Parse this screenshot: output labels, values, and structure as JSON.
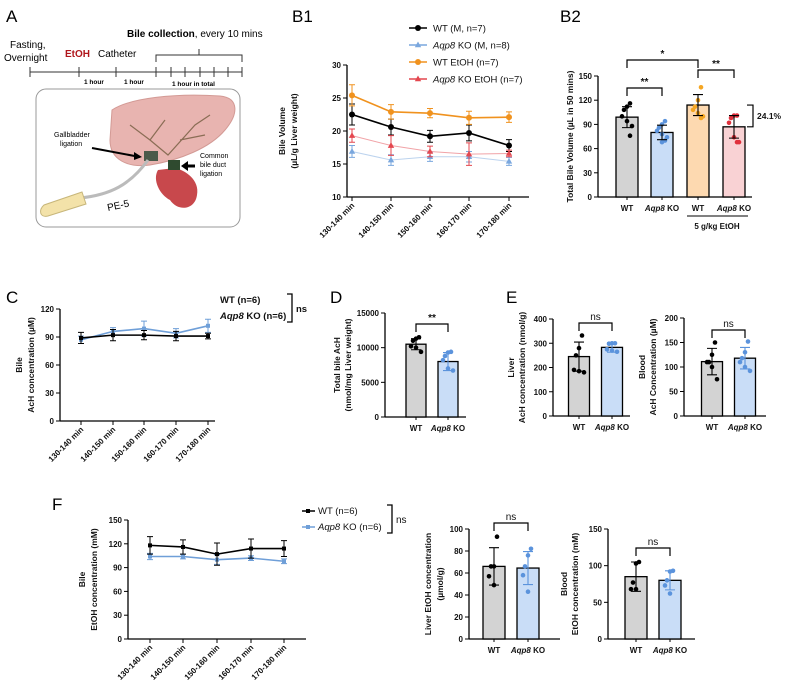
{
  "panels": {
    "A": "A",
    "B1": "B1",
    "B2": "B2",
    "C": "C",
    "D": "D",
    "E": "E",
    "F": "F"
  },
  "diagram": {
    "fasting": [
      "Fasting,",
      "Overnight"
    ],
    "etoh": "EtOH",
    "catheter": "Catheter",
    "bile_collection_bold": "Bile collection",
    "bile_collection_rest": ", every 10 mins",
    "interval1": "1 hour",
    "interval2": "1 hour",
    "interval3": "1 hour in total",
    "gallbladder": [
      "Gallbladder",
      "ligation"
    ],
    "common_bile_duct": [
      "Common",
      "bile duct",
      "ligation"
    ],
    "tube": "PE-5",
    "colors": {
      "etoh": "#b0161c",
      "liver": "#e8b4b0",
      "intestine": "#c8484c",
      "tube_tip": "#f3e2a9"
    }
  },
  "chart_data": [
    {
      "id": "B1",
      "type": "line",
      "ylabel": [
        "Bile Volume",
        "(µL/g Liver weight)"
      ],
      "ylim": [
        10,
        30
      ],
      "yticks": [
        10,
        15,
        20,
        25,
        30
      ],
      "categories": [
        "130-140 min",
        "140-150 min",
        "150-160 min",
        "160-170 min",
        "170-180 min"
      ],
      "series": [
        {
          "name": "WT (M, n=7)",
          "color": "#000000",
          "marker": "circle",
          "values": [
            22.5,
            20.6,
            19.2,
            19.7,
            17.8
          ],
          "error": [
            1.6,
            1.2,
            0.9,
            1.2,
            0.9
          ]
        },
        {
          "name": "Aqp8 KO (M, n=8)",
          "color": "#7aa7de",
          "marker": "triangle",
          "values": [
            16.9,
            15.6,
            16.1,
            16.1,
            15.4
          ],
          "error": [
            0.9,
            0.8,
            0.7,
            0.8,
            0.6
          ],
          "faded": true
        },
        {
          "name": "WT EtOH (n=7)",
          "color": "#f0921e",
          "marker": "circle",
          "values": [
            25.4,
            22.9,
            22.7,
            22.0,
            22.1
          ],
          "error": [
            1.6,
            1.1,
            0.7,
            1.0,
            0.8
          ]
        },
        {
          "name": "Aqp8 KO EtOH (n=7)",
          "color": "#e4474f",
          "marker": "triangle",
          "values": [
            19.3,
            17.8,
            16.9,
            16.5,
            16.6
          ],
          "error": [
            1.0,
            1.5,
            0.8,
            1.7,
            0.5
          ],
          "faded": true
        }
      ],
      "legend": "top-right"
    },
    {
      "id": "B2",
      "type": "bar",
      "ylabel": [
        "Total Bile Volume (µL in 50 mins)"
      ],
      "ylim": [
        0,
        150
      ],
      "yticks": [
        0,
        30,
        60,
        90,
        120,
        150
      ],
      "categories": [
        "WT",
        "Aqp8 KO",
        "WT",
        "Aqp8 KO"
      ],
      "values": [
        99,
        80,
        114,
        87
      ],
      "error": [
        13,
        9,
        13,
        14
      ],
      "fills": [
        "#d3d3d3",
        "#c9ddf7",
        "#fdd9b0",
        "#f9d2d4"
      ],
      "point_colors": [
        "#000000",
        "#5b93dc",
        "#f5a623",
        "#e0303c"
      ],
      "points": [
        [
          116,
          112,
          108,
          100,
          94,
          88,
          76
        ],
        [
          94,
          90,
          86,
          82,
          78,
          74,
          70,
          68
        ],
        [
          136,
          120,
          112,
          108,
          104,
          100,
          98
        ],
        [
          101,
          101,
          98,
          92,
          74,
          68,
          68
        ]
      ],
      "significance": [
        {
          "pair": [
            0,
            1
          ],
          "label": "**"
        },
        {
          "pair": [
            0,
            2
          ],
          "label": "*"
        },
        {
          "pair": [
            2,
            3
          ],
          "label": "**"
        }
      ],
      "annotation": "24.1%",
      "group_label": "5 g/kg EtOH"
    },
    {
      "id": "C",
      "type": "line",
      "ylabel": [
        "Bile",
        "AcH concentration (µM)"
      ],
      "ylim": [
        0,
        120
      ],
      "yticks": [
        0,
        30,
        60,
        90,
        120
      ],
      "categories": [
        "130-140 min",
        "140-150 min",
        "150-160 min",
        "160-170 min",
        "170-180 min"
      ],
      "series": [
        {
          "name": "Aqp8 KO (n=6)",
          "color": "#6f9fd8",
          "marker": "square",
          "values": [
            87,
            96,
            99,
            94,
            102
          ],
          "error": [
            4,
            4,
            8,
            5,
            7
          ]
        },
        {
          "name": "WT (n=6)",
          "color": "#000000",
          "marker": "square",
          "values": [
            89,
            92,
            92,
            91,
            91
          ],
          "error": [
            6,
            6,
            5,
            5,
            3
          ]
        }
      ],
      "legend_order": [
        1,
        0
      ],
      "significance": "ns"
    },
    {
      "id": "D",
      "type": "bar",
      "ylabel": [
        "Total bile AcH",
        "(nmol/mg Liver weight)"
      ],
      "ylim": [
        0,
        15000
      ],
      "yticks": [
        0,
        5000,
        10000,
        15000
      ],
      "categories": [
        "WT",
        "Aqp8 KO"
      ],
      "values": [
        10500,
        8000
      ],
      "error": [
        800,
        1300
      ],
      "fills": [
        "#d3d3d3",
        "#c9ddf7"
      ],
      "point_colors": [
        "#000000",
        "#5b93dc"
      ],
      "points": [
        [
          11500,
          11300,
          11000,
          10200,
          10000,
          9400
        ],
        [
          9400,
          9300,
          8800,
          8200,
          7000,
          6700
        ]
      ],
      "significance": [
        {
          "pair": [
            0,
            1
          ],
          "label": "**"
        }
      ]
    },
    {
      "id": "E-liver",
      "type": "bar",
      "ylabel": [
        "Liver",
        "AcH concentration (nmol/g)"
      ],
      "ylim": [
        0,
        400
      ],
      "yticks": [
        0,
        100,
        200,
        300,
        400
      ],
      "categories": [
        "WT",
        "Aqp8 KO"
      ],
      "values": [
        245,
        283
      ],
      "error": [
        60,
        20
      ],
      "fills": [
        "#d3d3d3",
        "#c9ddf7"
      ],
      "point_colors": [
        "#000000",
        "#5b93dc"
      ],
      "points": [
        [
          332,
          280,
          250,
          190,
          185,
          180
        ],
        [
          300,
          300,
          298,
          275,
          270,
          265
        ]
      ],
      "significance": [
        {
          "pair": [
            0,
            1
          ],
          "label": "ns"
        }
      ]
    },
    {
      "id": "E-blood",
      "type": "bar",
      "ylabel": [
        "Blood",
        "AcH Concentration (µM)"
      ],
      "ylim": [
        0,
        200
      ],
      "yticks": [
        0,
        50,
        100,
        150,
        200
      ],
      "categories": [
        "WT",
        "Aqp8 KO"
      ],
      "values": [
        111,
        118
      ],
      "error": [
        27,
        22
      ],
      "fills": [
        "#d3d3d3",
        "#c9ddf7"
      ],
      "point_colors": [
        "#000000",
        "#5b93dc"
      ],
      "points": [
        [
          150,
          125,
          110,
          110,
          100,
          75
        ],
        [
          152,
          130,
          118,
          110,
          100,
          92
        ]
      ],
      "significance": [
        {
          "pair": [
            0,
            1
          ],
          "label": "ns"
        }
      ]
    },
    {
      "id": "F-bile",
      "type": "line",
      "ylabel": [
        "Bile",
        "EtOH concentration (mM)"
      ],
      "ylim": [
        0,
        150
      ],
      "yticks": [
        0,
        30,
        60,
        90,
        120,
        150
      ],
      "categories": [
        "130-140 min",
        "140-150 min",
        "150-160 min",
        "160-170 min",
        "170-180 min"
      ],
      "series": [
        {
          "name": "Aqp8 KO (n=6)",
          "color": "#6f9fd8",
          "marker": "square",
          "values": [
            104,
            104,
            100,
            102,
            98
          ],
          "error": [
            4,
            3,
            6,
            3,
            3
          ]
        },
        {
          "name": "WT (n=6)",
          "color": "#000000",
          "marker": "square",
          "values": [
            118,
            116,
            107,
            114,
            114
          ],
          "error": [
            11,
            9,
            14,
            12,
            10
          ]
        }
      ],
      "legend_order": [
        1,
        0
      ],
      "significance": "ns"
    },
    {
      "id": "F-liver",
      "type": "bar",
      "ylabel": [
        "Liver EtOH concentration",
        "(µmol/g)"
      ],
      "ylim": [
        0,
        100
      ],
      "yticks": [
        0,
        20,
        40,
        60,
        80,
        100
      ],
      "categories": [
        "WT",
        "Aqp8 KO"
      ],
      "values": [
        66,
        64.5
      ],
      "error": [
        17,
        15
      ],
      "fills": [
        "#d3d3d3",
        "#c9ddf7"
      ],
      "point_colors": [
        "#000000",
        "#5b93dc"
      ],
      "points": [
        [
          93,
          66,
          66,
          57,
          49
        ],
        [
          82,
          76,
          66,
          58,
          43
        ]
      ],
      "significance": [
        {
          "pair": [
            0,
            1
          ],
          "label": "ns"
        }
      ]
    },
    {
      "id": "F-blood",
      "type": "bar",
      "ylabel": [
        "Blood",
        "EtOH concentration (mM)"
      ],
      "ylim": [
        0,
        150
      ],
      "yticks": [
        0,
        50,
        100,
        150
      ],
      "categories": [
        "WT",
        "Aqp8 KO"
      ],
      "values": [
        85,
        80
      ],
      "error": [
        20,
        13
      ],
      "fills": [
        "#d3d3d3",
        "#c9ddf7"
      ],
      "point_colors": [
        "#000000",
        "#5b93dc"
      ],
      "points": [
        [
          105,
          103,
          77,
          68,
          68
        ],
        [
          93,
          92,
          80,
          73,
          62
        ]
      ],
      "significance": [
        {
          "pair": [
            0,
            1
          ],
          "label": "ns"
        }
      ]
    }
  ]
}
